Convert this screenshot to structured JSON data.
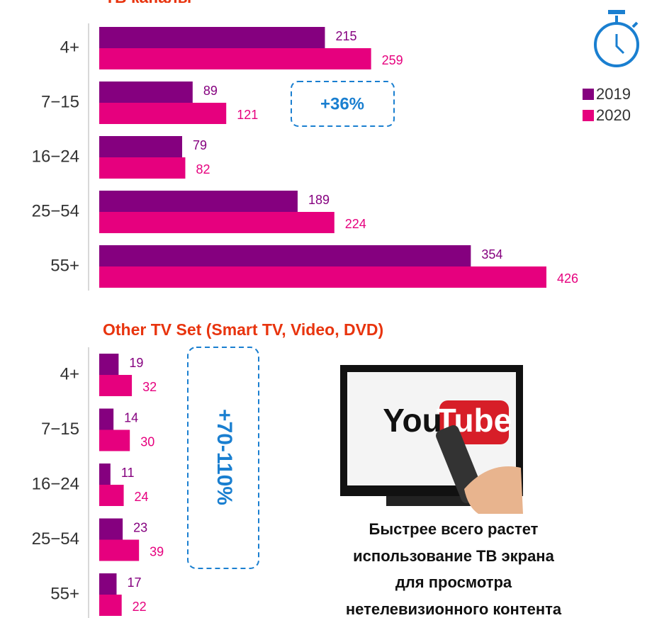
{
  "chart_data": [
    {
      "type": "bar",
      "orientation": "horizontal",
      "title": "ТВ каналы",
      "categories": [
        "4+",
        "7−15",
        "16−24",
        "25−54",
        "55+"
      ],
      "series": [
        {
          "name": "2019",
          "color": "#85007f",
          "values": [
            215,
            89,
            79,
            189,
            354
          ]
        },
        {
          "name": "2020",
          "color": "#e6007e",
          "values": [
            259,
            121,
            82,
            224,
            426
          ]
        }
      ],
      "annotation": "+36%"
    },
    {
      "type": "bar",
      "orientation": "horizontal",
      "title": "Other TV Set (Smart TV, Video, DVD)",
      "categories": [
        "4+",
        "7−15",
        "16−24",
        "25−54",
        "55+"
      ],
      "series": [
        {
          "name": "2019",
          "color": "#85007f",
          "values": [
            19,
            14,
            11,
            23,
            17
          ]
        },
        {
          "name": "2020",
          "color": "#e6007e",
          "values": [
            32,
            30,
            24,
            39,
            22
          ]
        }
      ],
      "annotation": "+70-110%"
    }
  ],
  "image": {
    "logo": [
      "You",
      "Tube"
    ]
  },
  "caption": [
    "Быстрее всего растет",
    "использование ТВ экрана",
    "для просмотра",
    "нетелевизионного контента"
  ]
}
